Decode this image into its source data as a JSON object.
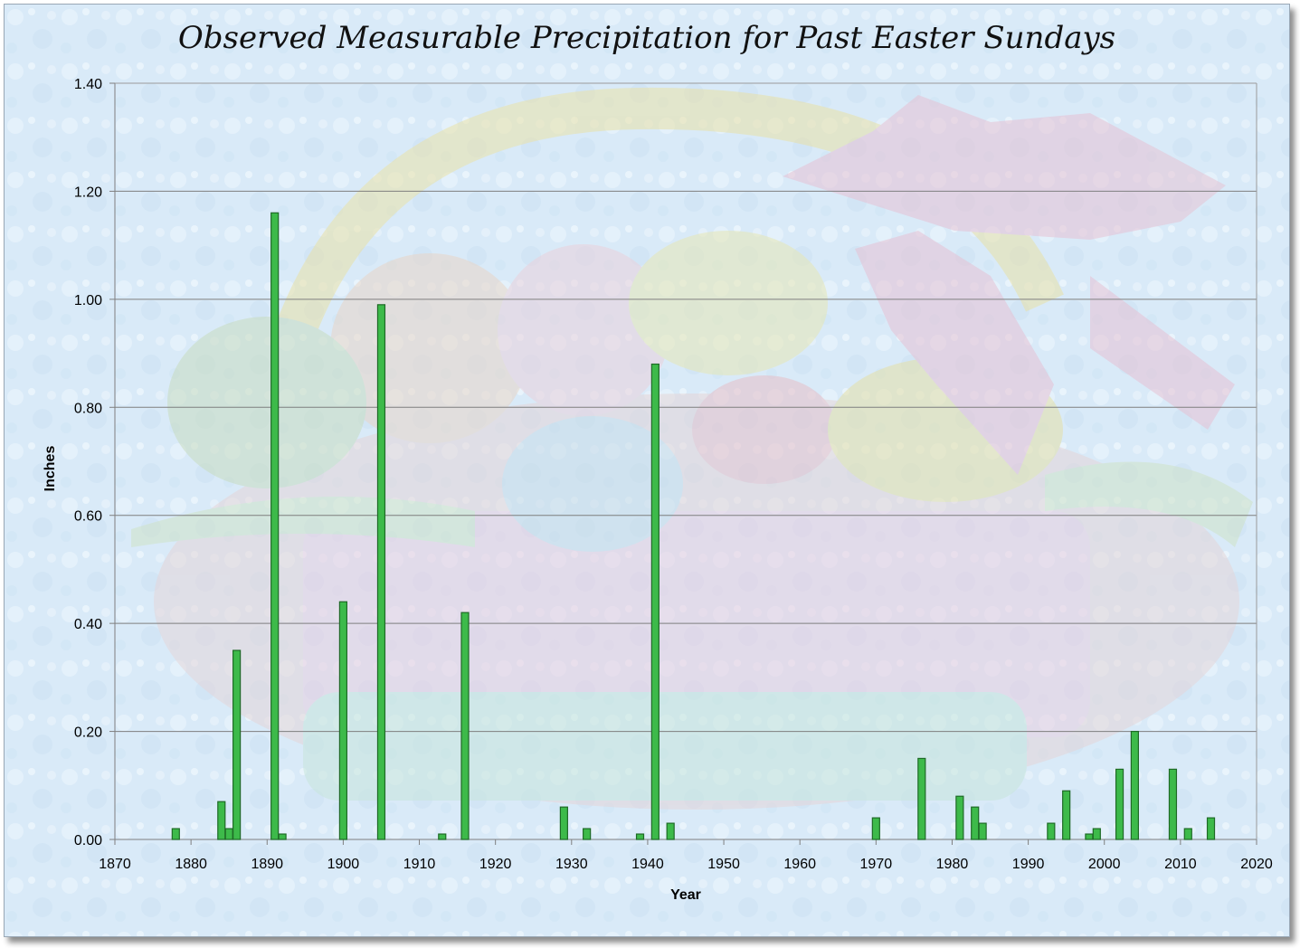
{
  "chart_data": {
    "type": "bar",
    "title": "Observed Measurable Precipitation for Past Easter Sundays",
    "xlabel": "Year",
    "ylabel": "Inches",
    "xlim": [
      1870,
      2020
    ],
    "ylim": [
      0,
      1.4
    ],
    "x_ticks": [
      "1870",
      "1880",
      "1890",
      "1900",
      "1910",
      "1920",
      "1930",
      "1940",
      "1950",
      "1960",
      "1970",
      "1980",
      "1990",
      "2000",
      "2010",
      "2020"
    ],
    "y_ticks": [
      "0.00",
      "0.20",
      "0.40",
      "0.60",
      "0.80",
      "1.00",
      "1.20",
      "1.40"
    ],
    "grid": true,
    "bar_color": "#3dba4a",
    "bar_edge_color": "#1e6a26",
    "background_color": "#dcecf8",
    "x": [
      1878,
      1884,
      1885,
      1886,
      1891,
      1892,
      1900,
      1905,
      1913,
      1916,
      1929,
      1932,
      1939,
      1941,
      1943,
      1970,
      1976,
      1981,
      1983,
      1984,
      1993,
      1995,
      1998,
      1999,
      2002,
      2004,
      2009,
      2011,
      2014
    ],
    "values": [
      0.02,
      0.07,
      0.02,
      0.35,
      1.16,
      0.01,
      0.44,
      0.99,
      0.01,
      0.42,
      0.06,
      0.02,
      0.01,
      0.88,
      0.03,
      0.04,
      0.15,
      0.08,
      0.06,
      0.03,
      0.03,
      0.09,
      0.01,
      0.02,
      0.13,
      0.2,
      0.13,
      0.02,
      0.04
    ]
  }
}
